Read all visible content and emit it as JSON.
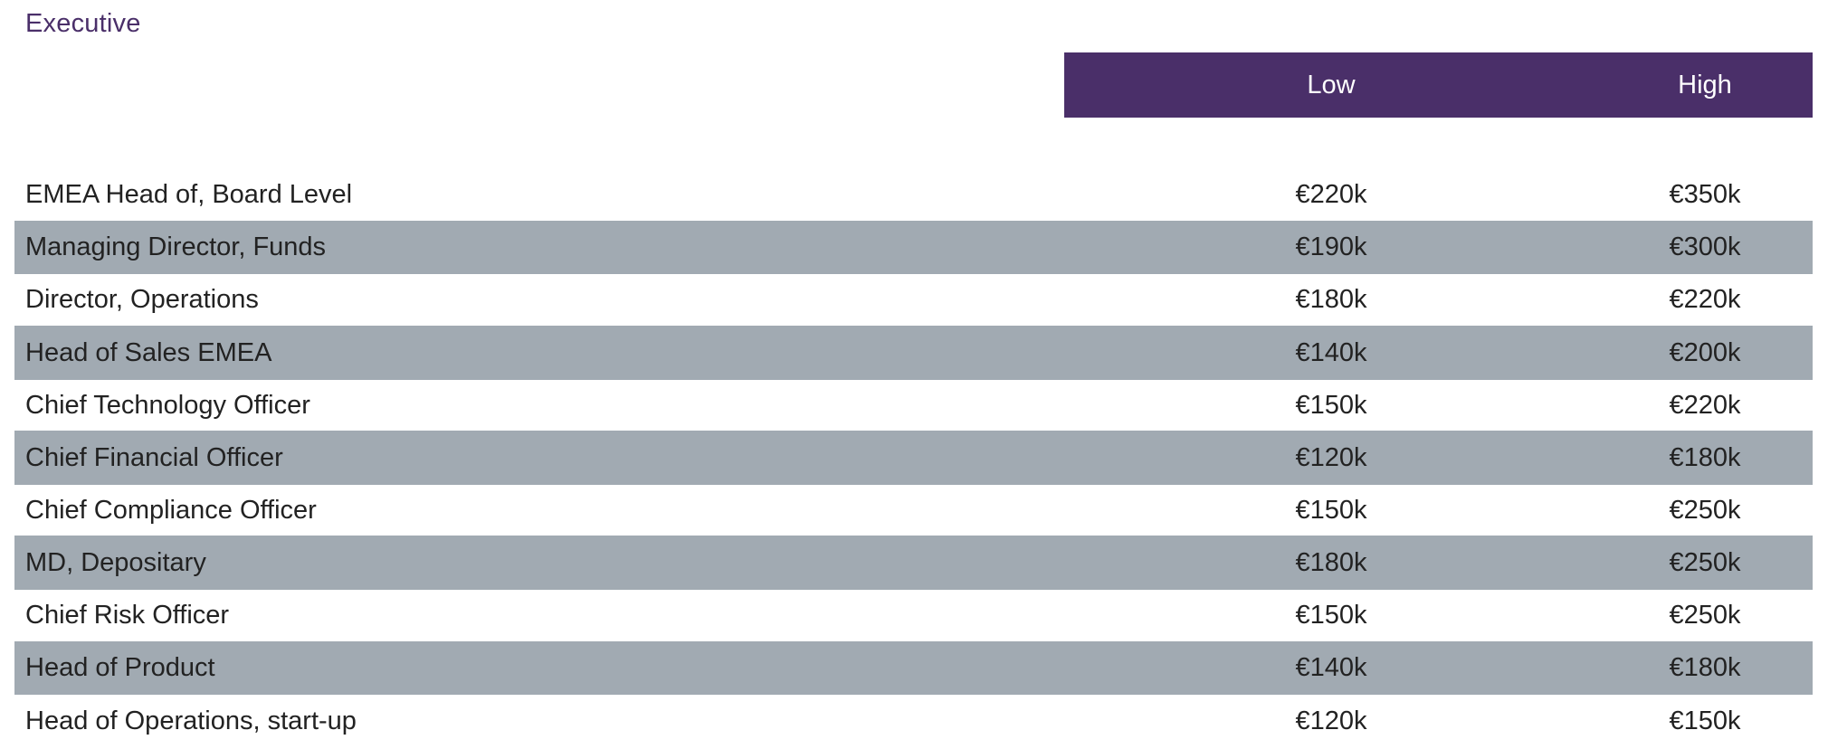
{
  "section_title": "Executive",
  "columns": {
    "low": "Low",
    "high": "High"
  },
  "rows": [
    {
      "role": "EMEA Head of, Board Level",
      "low": "€220k",
      "high": "€350k"
    },
    {
      "role": "Managing Director, Funds",
      "low": "€190k",
      "high": "€300k"
    },
    {
      "role": "Director, Operations",
      "low": "€180k",
      "high": "€220k"
    },
    {
      "role": "Head of Sales EMEA",
      "low": "€140k",
      "high": "€200k"
    },
    {
      "role": "Chief Technology Officer",
      "low": "€150k",
      "high": "€220k"
    },
    {
      "role": "Chief Financial Officer",
      "low": "€120k",
      "high": "€180k"
    },
    {
      "role": "Chief Compliance Officer",
      "low": "€150k",
      "high": "€250k"
    },
    {
      "role": "MD, Depositary",
      "low": "€180k",
      "high": "€250k"
    },
    {
      "role": "Chief Risk Officer",
      "low": "€150k",
      "high": "€250k"
    },
    {
      "role": "Head of Product",
      "low": "€140k",
      "high": "€180k"
    },
    {
      "role": "Head of Operations, start-up",
      "low": "€120k",
      "high": "€150k"
    }
  ],
  "colors": {
    "header_bg": "#4a2f69",
    "title_text": "#4a2f69",
    "stripe_bg": "#a1aab2"
  }
}
